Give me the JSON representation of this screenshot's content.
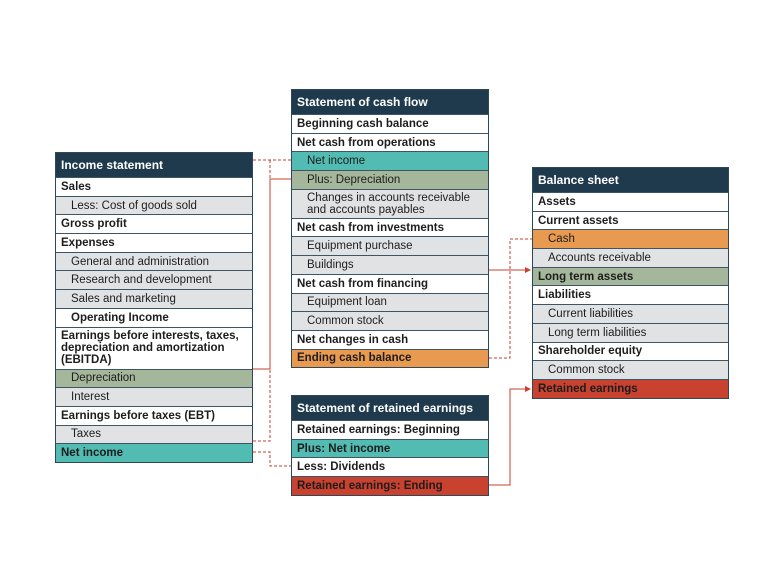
{
  "income_statement": {
    "title": "Income statement",
    "rows": [
      "Sales",
      "Less: Cost of goods sold",
      "Gross profit",
      "Expenses",
      "General and administration",
      "Research and development",
      "Sales and marketing",
      "Operating Income",
      "Earnings before interests, taxes, depreciation and amortization (EBITDA)",
      "Depreciation",
      "Interest",
      "Earnings before taxes (EBT)",
      "Taxes",
      "Net income"
    ]
  },
  "cash_flow": {
    "title": "Statement of cash flow",
    "rows": [
      "Beginning cash balance",
      "Net cash from operations",
      "Net income",
      "Plus: Depreciation",
      "Changes in accounts receivable and accounts payables",
      "Net cash from investments",
      "Equipment purchase",
      "Buildings",
      "Net cash from financing",
      "Equipment loan",
      "Common stock",
      "Net changes in cash",
      "Ending cash balance"
    ]
  },
  "retained_earnings": {
    "title": "Statement of retained earnings",
    "rows": [
      "Retained earnings: Beginning",
      "Plus: Net income",
      "Less: Dividends",
      "Retained earnings: Ending"
    ]
  },
  "balance_sheet": {
    "title": "Balance sheet",
    "rows": [
      "Assets",
      "Current assets",
      "Cash",
      "Accounts receivable",
      "Long term assets",
      "Liabilities",
      "Current liabilities",
      "Long term liabilities",
      "Shareholder equity",
      "Common stock",
      "Retained earnings"
    ]
  }
}
